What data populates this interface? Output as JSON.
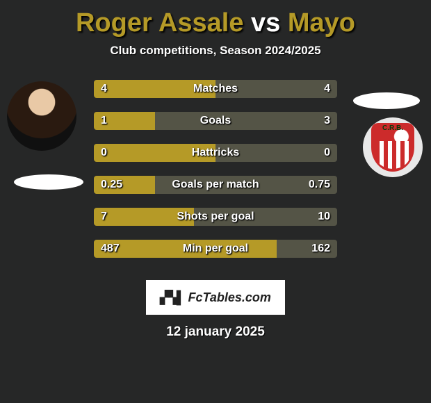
{
  "title": {
    "left": "Roger Assale",
    "vs": " vs ",
    "right": "Mayo"
  },
  "title_colors": {
    "left": "#b59a27",
    "vs": "#ffffff",
    "right": "#b59a27"
  },
  "subtitle": "Club competitions, Season 2024/2025",
  "side_colors": {
    "left": "#b59a27",
    "right": "#545446"
  },
  "stats": [
    {
      "label": "Matches",
      "left_val": "4",
      "right_val": "4",
      "left_pct": 50,
      "right_pct": 50
    },
    {
      "label": "Goals",
      "left_val": "1",
      "right_val": "3",
      "left_pct": 25,
      "right_pct": 75
    },
    {
      "label": "Hattricks",
      "left_val": "0",
      "right_val": "0",
      "left_pct": 50,
      "right_pct": 50
    },
    {
      "label": "Goals per match",
      "left_val": "0.25",
      "right_val": "0.75",
      "left_pct": 25,
      "right_pct": 75
    },
    {
      "label": "Shots per goal",
      "left_val": "7",
      "right_val": "10",
      "left_pct": 41,
      "right_pct": 59
    },
    {
      "label": "Min per goal",
      "left_val": "487",
      "right_val": "162",
      "left_pct": 75,
      "right_pct": 25
    }
  ],
  "logo_text": "FcTables.com",
  "date_text": "12 january 2025"
}
